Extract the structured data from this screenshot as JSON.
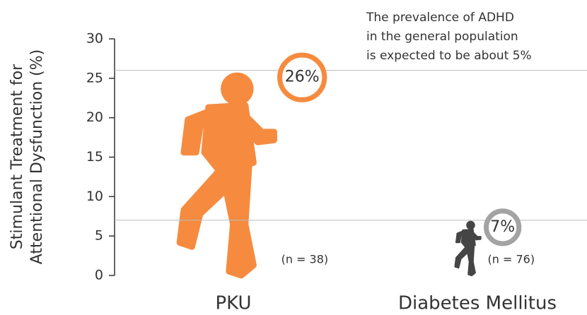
{
  "chart_data": {
    "type": "pictograph",
    "y_label": [
      "Stimulant Treatment for",
      "Attentional Dysfunction (%)"
    ],
    "annotation": [
      "The prevalence of ADHD",
      "in the general population",
      "is expected to be about 5%"
    ],
    "categories": [
      "PKU",
      "Diabetes Mellitus"
    ],
    "values": [
      26,
      7
    ],
    "value_labels": [
      "26%",
      "7%"
    ],
    "sample_sizes": [
      "(n = 38)",
      "(n = 76)"
    ],
    "colors": [
      "#f68b3f",
      "#454545"
    ],
    "ring_colors": [
      "#f68b3f",
      "#a3a3a3"
    ],
    "ylim": [
      0,
      30
    ],
    "yticks": [
      0,
      5,
      10,
      15,
      20,
      25,
      30
    ]
  }
}
